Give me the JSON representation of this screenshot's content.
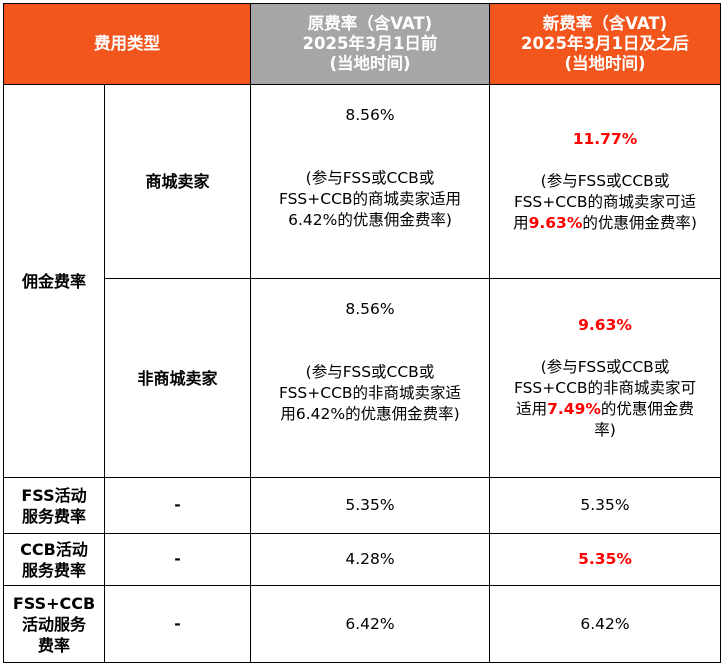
{
  "header": {
    "fee_type": "费用类型",
    "old_rate": [
      "原费率（含VAT)",
      "2025年3月1日前",
      "(当地时间)"
    ],
    "new_rate": [
      "新费率（含VAT)",
      "2025年3月1日及之后",
      "(当地时间)"
    ]
  },
  "commission": {
    "label": "佣金费率",
    "mall": {
      "label": "商城卖家",
      "old_rate": "8.56%",
      "old_note": [
        "(参与FSS或CCB或",
        "FSS+CCB的商城卖家适用",
        "6.42%的优惠佣金费率)"
      ],
      "new_rate": "11.77%",
      "new_note_line1": "(参与FSS或CCB或",
      "new_note_line2": "FSS+CCB的商城卖家可适",
      "new_note_line3_pre": "用",
      "new_note_line3_rate": "9.63%",
      "new_note_line3_post": "的优惠佣金费率)"
    },
    "non_mall": {
      "label": "非商城卖家",
      "old_rate": "8.56%",
      "old_note": [
        "(参与FSS或CCB或",
        "FSS+CCB的非商城卖家适",
        "用6.42%的优惠佣金费率)"
      ],
      "new_rate": "9.63%",
      "new_note_line1": "(参与FSS或CCB或",
      "new_note_line2": "FSS+CCB的非商城卖家可",
      "new_note_line3_pre": "适用",
      "new_note_line3_rate": "7.49%",
      "new_note_line3_post": "的优惠佣金费",
      "new_note_line4": "率)"
    }
  },
  "fss": {
    "label": [
      "FSS活动",
      "服务费率"
    ],
    "sub": "-",
    "old_rate": "5.35%",
    "new_rate": "5.35%"
  },
  "ccb": {
    "label": [
      "CCB活动",
      "服务费率"
    ],
    "sub": "-",
    "old_rate": "4.28%",
    "new_rate": "5.35%"
  },
  "fss_ccb": {
    "label": [
      "FSS+CCB",
      "活动服务",
      "费率"
    ],
    "sub": "-",
    "old_rate": "6.42%",
    "new_rate": "6.42%"
  },
  "colors": {
    "header_orange": "#f2561d",
    "header_gray": "#a6a6a6",
    "highlight_red": "#ff0000"
  }
}
